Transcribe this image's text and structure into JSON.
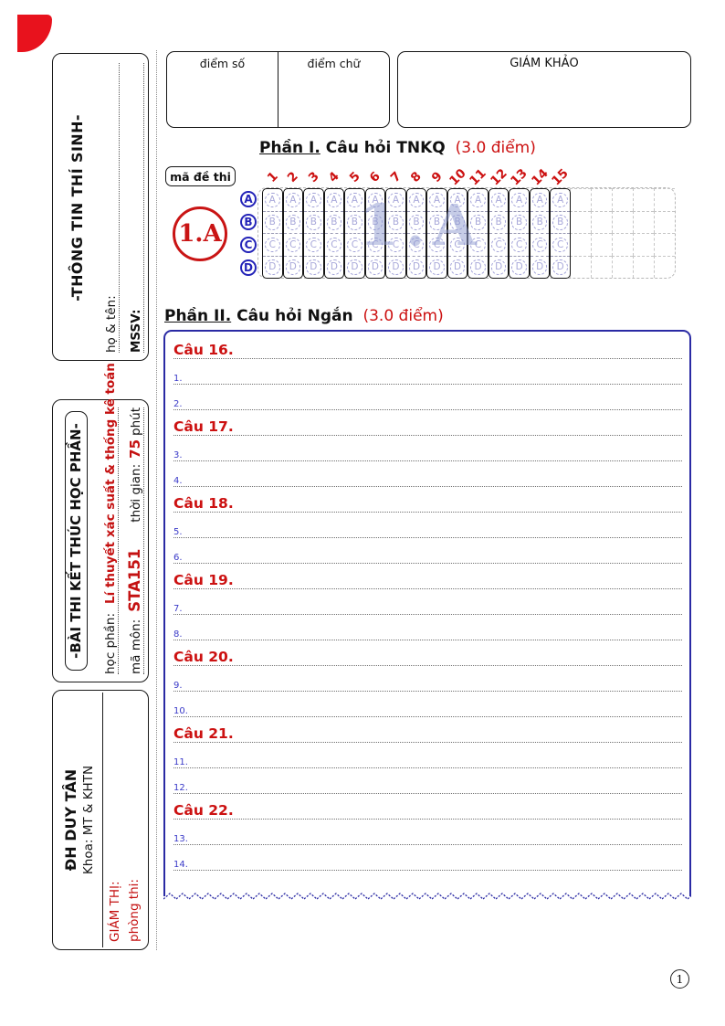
{
  "colors": {
    "accent_red": "#cc1111",
    "accent_blue": "#2a2aa4",
    "bubble_lavender": "#a9a9da",
    "logo_red": "#e8121d"
  },
  "header": {
    "score_number_label": "điểm số",
    "score_word_label": "điểm chữ",
    "examiner_label": "GIÁM KHẢO"
  },
  "sidebar": {
    "student_info": {
      "title": "-THÔNG TIN THÍ SINH-",
      "name_label": "họ & tên:",
      "id_label": "MSSV:"
    },
    "exam_info": {
      "title": "-BÀI THI KẾT THÚC HỌC PHẦN-",
      "course_label": "học phần:",
      "course_value": "Lí thuyết xác suất & thống kê toán",
      "code_label": "mã môn:",
      "code_value": "STA151",
      "time_label": "thời gian:",
      "time_value": "75",
      "time_unit": "phút"
    },
    "university": {
      "name": "ĐH DUY TÂN",
      "faculty": "Khoa: MT & KHTN",
      "proctor_label": "GIÁM THỊ:",
      "room_label": "phòng thi:"
    }
  },
  "part1": {
    "title_prefix": "Phần I.",
    "title": "Câu hỏi TNKQ",
    "points": "(3.0 điểm)",
    "exam_code_label": "mã đề thi",
    "exam_code": "1.A",
    "watermark": "1.A",
    "columns": [
      "1",
      "2",
      "3",
      "4",
      "5",
      "6",
      "7",
      "8",
      "9",
      "10",
      "11",
      "12",
      "13",
      "14",
      "15"
    ],
    "options": [
      "A",
      "B",
      "C",
      "D"
    ]
  },
  "part2": {
    "title_prefix": "Phần II.",
    "title": "Câu hỏi Ngắn",
    "points": "(3.0 điểm)",
    "rows": [
      {
        "t": "q",
        "label": "Câu 16."
      },
      {
        "t": "n",
        "label": "1."
      },
      {
        "t": "n",
        "label": "2."
      },
      {
        "t": "q",
        "label": "Câu 17."
      },
      {
        "t": "n",
        "label": "3."
      },
      {
        "t": "n",
        "label": "4."
      },
      {
        "t": "q",
        "label": "Câu 18."
      },
      {
        "t": "n",
        "label": "5."
      },
      {
        "t": "n",
        "label": "6."
      },
      {
        "t": "q",
        "label": "Câu 19."
      },
      {
        "t": "n",
        "label": "7."
      },
      {
        "t": "n",
        "label": "8."
      },
      {
        "t": "q",
        "label": "Câu 20."
      },
      {
        "t": "n",
        "label": "9."
      },
      {
        "t": "n",
        "label": "10."
      },
      {
        "t": "q",
        "label": "Câu 21."
      },
      {
        "t": "n",
        "label": "11."
      },
      {
        "t": "n",
        "label": "12."
      },
      {
        "t": "q",
        "label": "Câu 22."
      },
      {
        "t": "n",
        "label": "13."
      },
      {
        "t": "n",
        "label": "14."
      }
    ]
  },
  "footer": {
    "page_number": "1"
  }
}
